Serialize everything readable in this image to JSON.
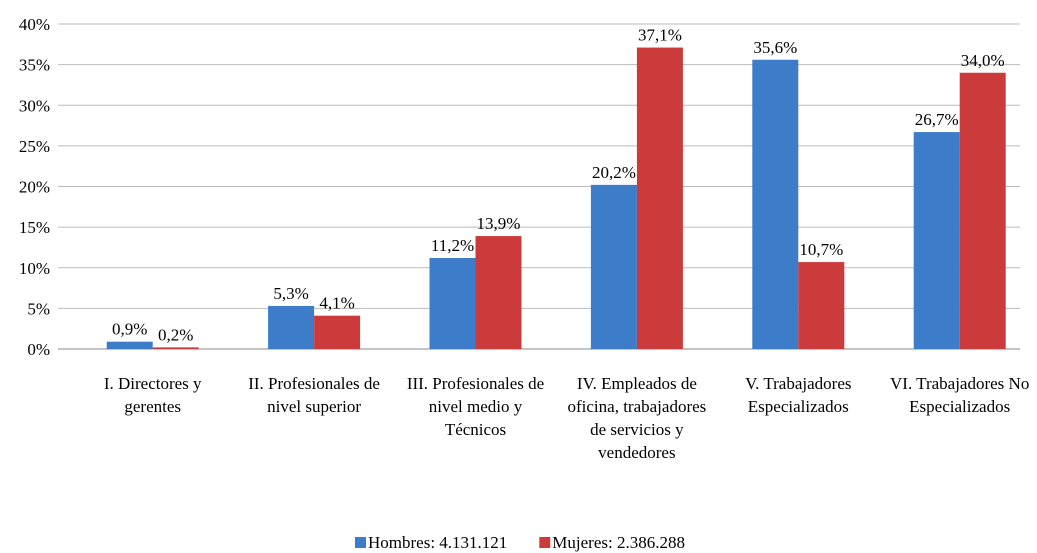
{
  "chart_data": {
    "type": "bar",
    "categories": [
      "I. Directores y gerentes",
      "II. Profesionales de nivel superior",
      "III. Profesionales de nivel medio y Técnicos",
      "IV. Empleados de oficina, trabajadores de servicios y vendedores",
      "V. Trabajadores Especializados",
      "VI. Trabajadores No Especializados"
    ],
    "series": [
      {
        "name": "Hombres: 4.131.121",
        "color": "#3d7cc9",
        "values": [
          0.9,
          5.3,
          11.2,
          20.2,
          35.6,
          26.7
        ],
        "value_labels": [
          "0,9%",
          "5,3%",
          "11,2%",
          "20,2%",
          "35,6%",
          "26,7%"
        ]
      },
      {
        "name": "Mujeres: 2.386.288",
        "color": "#cc3b3b",
        "values": [
          0.2,
          4.1,
          13.9,
          37.1,
          10.7,
          34.0
        ],
        "value_labels": [
          "0,2%",
          "4,1%",
          "13,9%",
          "37,1%",
          "10,7%",
          "34,0%"
        ]
      }
    ],
    "ylim": [
      0,
      40
    ],
    "yticks": [
      {
        "value": 0,
        "label": "0%"
      },
      {
        "value": 5,
        "label": "5%"
      },
      {
        "value": 10,
        "label": "10%"
      },
      {
        "value": 15,
        "label": "15%"
      },
      {
        "value": 20,
        "label": "20%"
      },
      {
        "value": 25,
        "label": "25%"
      },
      {
        "value": 30,
        "label": "30%"
      },
      {
        "value": 35,
        "label": "35%"
      },
      {
        "value": 40,
        "label": "40%"
      }
    ],
    "grid": true,
    "legend": "bottom"
  }
}
